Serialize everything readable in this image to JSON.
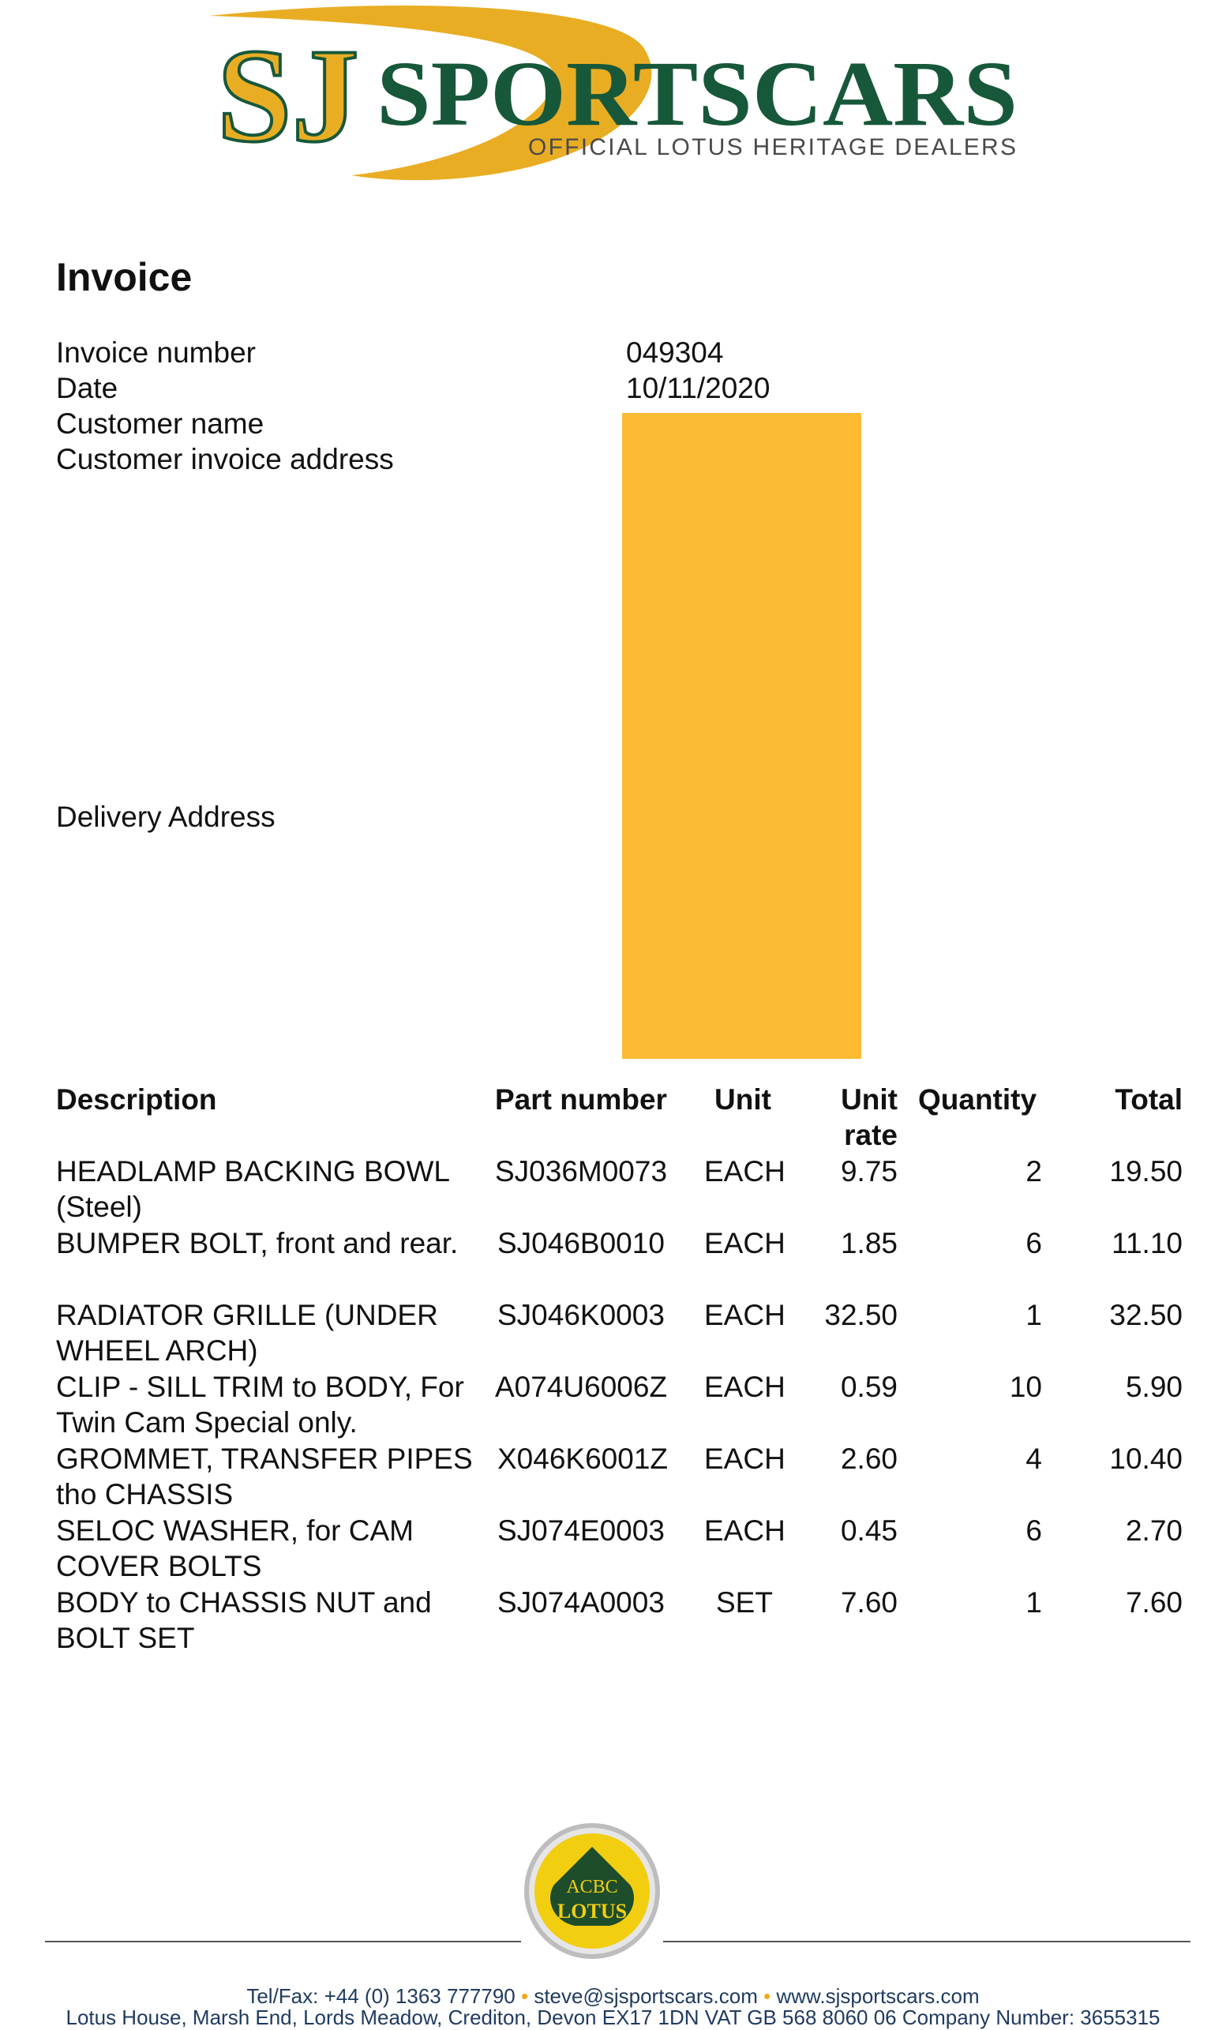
{
  "brand": {
    "initials": "SJ",
    "name": "SPORTSCARS",
    "tagline": "OFFICIAL LOTUS HERITAGE DEALERS",
    "colors": {
      "green": "#17583a",
      "gold": "#e9ad24"
    }
  },
  "invoice": {
    "title": "Invoice",
    "fields": [
      {
        "label": "Invoice number",
        "value": "049304"
      },
      {
        "label": "Date",
        "value": "10/11/2020"
      },
      {
        "label": "Customer name",
        "value": ""
      },
      {
        "label": "Customer invoice address",
        "value": ""
      },
      {
        "label": "Delivery Address",
        "value": ""
      }
    ],
    "redaction_color": "#fbbb33"
  },
  "table": {
    "headers": {
      "description": "Description",
      "part_number": "Part number",
      "unit": "Unit",
      "unit_rate_1": "Unit",
      "unit_rate_2": "rate",
      "quantity": "Quantity",
      "total": "Total"
    },
    "rows": [
      {
        "description": "HEADLAMP BACKING BOWL (Steel)",
        "part_number": "SJ036M0073",
        "unit": "EACH",
        "unit_rate": "9.75",
        "quantity": "2",
        "total": "19.50"
      },
      {
        "description": "BUMPER BOLT, front and rear.",
        "part_number": "SJ046B0010",
        "unit": "EACH",
        "unit_rate": "1.85",
        "quantity": "6",
        "total": "11.10"
      },
      {
        "description": "RADIATOR GRILLE (UNDER WHEEL ARCH)",
        "part_number": "SJ046K0003",
        "unit": "EACH",
        "unit_rate": "32.50",
        "quantity": "1",
        "total": "32.50"
      },
      {
        "description": "CLIP - SILL TRIM to BODY, For Twin Cam Special only.",
        "part_number": "A074U6006Z",
        "unit": "EACH",
        "unit_rate": "0.59",
        "quantity": "10",
        "total": "5.90"
      },
      {
        "description": "GROMMET, TRANSFER PIPES tho CHASSIS",
        "part_number": "X046K6001Z",
        "unit": "EACH",
        "unit_rate": "2.60",
        "quantity": "4",
        "total": "10.40"
      },
      {
        "description": "SELOC WASHER, for CAM COVER BOLTS",
        "part_number": "SJ074E0003",
        "unit": "EACH",
        "unit_rate": "0.45",
        "quantity": "6",
        "total": "2.70"
      },
      {
        "description": "BODY to CHASSIS NUT and BOLT SET",
        "part_number": "SJ074A0003",
        "unit": "SET",
        "unit_rate": "7.60",
        "quantity": "1",
        "total": "7.60"
      }
    ]
  },
  "badge": {
    "text": "LOTUS",
    "monogram": "ACBC"
  },
  "footer": {
    "tel": "Tel/Fax: +44 (0) 1363 777790",
    "email": "steve@sjsportscars.com",
    "web": "www.sjsportscars.com",
    "separator": "•",
    "address": "Lotus House, Marsh End, Lords Meadow, Crediton, Devon EX17 1DN VAT GB 568 8060 06 Company Number: 3655315"
  }
}
